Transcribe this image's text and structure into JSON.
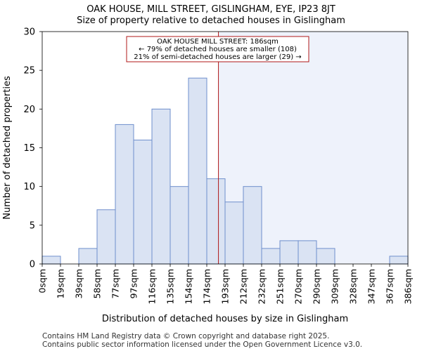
{
  "chart_data": {
    "type": "bar",
    "title": "OAK HOUSE, MILL STREET, GISLINGHAM, EYE, IP23 8JT",
    "subtitle": "Size of property relative to detached houses in Gislingham",
    "xlabel": "Distribution of detached houses by size in Gislingham",
    "ylabel": "Number of detached properties",
    "ylim": [
      0,
      30
    ],
    "yticks": [
      0,
      5,
      10,
      15,
      20,
      25,
      30
    ],
    "xlim": [
      0,
      386
    ],
    "bin_edges": [
      0,
      19,
      39,
      58,
      77,
      97,
      116,
      135,
      154,
      174,
      193,
      212,
      232,
      251,
      270,
      290,
      309,
      328,
      347,
      367,
      386
    ],
    "tick_labels": [
      "0sqm",
      "19sqm",
      "39sqm",
      "58sqm",
      "77sqm",
      "97sqm",
      "116sqm",
      "135sqm",
      "154sqm",
      "174sqm",
      "193sqm",
      "212sqm",
      "232sqm",
      "251sqm",
      "270sqm",
      "290sqm",
      "309sqm",
      "328sqm",
      "347sqm",
      "367sqm",
      "386sqm"
    ],
    "values": [
      1,
      0,
      2,
      7,
      18,
      16,
      20,
      10,
      24,
      11,
      8,
      10,
      2,
      3,
      3,
      2,
      0,
      0,
      0,
      1
    ],
    "marker_value": 186,
    "annotation": {
      "line1": "OAK HOUSE MILL STREET: 186sqm",
      "line2": "← 79% of detached houses are smaller (108)",
      "line3": "21% of semi-detached houses are larger (29) →"
    },
    "colors": {
      "bar_fill": "#dae3f3",
      "bar_stroke": "#6f8fcc",
      "highlight_fill": "#eef2fb",
      "marker": "#b01818"
    }
  },
  "footer": {
    "line1": "Contains HM Land Registry data © Crown copyright and database right 2025.",
    "line2": "Contains public sector information licensed under the Open Government Licence v3.0."
  }
}
